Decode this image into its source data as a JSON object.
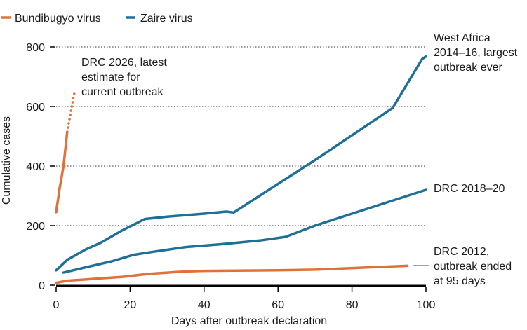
{
  "chart_data": {
    "type": "line",
    "title": "",
    "xlabel": "Days after outbreak declaration",
    "ylabel": "Cumulative cases",
    "xlim": [
      0,
      100
    ],
    "ylim": [
      0,
      800
    ],
    "x_ticks": [
      0,
      20,
      40,
      60,
      80,
      100
    ],
    "y_ticks": [
      0,
      200,
      400,
      600,
      800
    ],
    "grid": "horizontal dotted",
    "legend_position": "top-left",
    "legend": [
      {
        "label": "Bundibugyo virus",
        "color": "#e2703a"
      },
      {
        "label": "Zaire virus",
        "color": "#1f6f96"
      }
    ],
    "series": [
      {
        "name": "Bundibugyo virus",
        "color": "#e2703a",
        "points": [
          [
            0,
            245
          ],
          [
            1,
            330
          ],
          [
            2,
            400
          ],
          [
            3,
            515
          ]
        ]
      },
      {
        "name": "Bundibugyo virus",
        "color": "#e2703a",
        "dashed": true,
        "points": [
          [
            3,
            515
          ],
          [
            4,
            585
          ],
          [
            5,
            650
          ]
        ]
      },
      {
        "name": "Bundibugyo virus",
        "color": "#e2703a",
        "points": [
          [
            0,
            8
          ],
          [
            3,
            15
          ],
          [
            8,
            19
          ],
          [
            12,
            23
          ],
          [
            18,
            28
          ],
          [
            25,
            38
          ],
          [
            35,
            46
          ],
          [
            40,
            48
          ],
          [
            60,
            50
          ],
          [
            70,
            52
          ],
          [
            85,
            60
          ],
          [
            95,
            65
          ]
        ]
      },
      {
        "name": "Zaire virus",
        "color": "#1f6f96",
        "points": [
          [
            0,
            50
          ],
          [
            3,
            85
          ],
          [
            8,
            120
          ],
          [
            12,
            142
          ],
          [
            18,
            185
          ],
          [
            24,
            222
          ],
          [
            30,
            230
          ],
          [
            40,
            240
          ],
          [
            46,
            247
          ],
          [
            48,
            244
          ],
          [
            55,
            300
          ],
          [
            70,
            420
          ],
          [
            91,
            595
          ],
          [
            99,
            760
          ],
          [
            100,
            768
          ]
        ]
      },
      {
        "name": "Zaire virus",
        "color": "#1f6f96",
        "points": [
          [
            2,
            42
          ],
          [
            8,
            60
          ],
          [
            15,
            80
          ],
          [
            21,
            102
          ],
          [
            25,
            110
          ],
          [
            35,
            128
          ],
          [
            45,
            138
          ],
          [
            55,
            150
          ],
          [
            62,
            162
          ],
          [
            70,
            200
          ],
          [
            80,
            240
          ],
          [
            90,
            280
          ],
          [
            100,
            320
          ]
        ]
      }
    ],
    "annotations": [
      {
        "id": "drc2026",
        "lines": [
          "DRC 2026, latest",
          "estimate for",
          "current outbreak"
        ]
      },
      {
        "id": "westafrica",
        "lines": [
          "West Africa",
          "2014–16, largest",
          "outbreak ever"
        ]
      },
      {
        "id": "drc2018",
        "lines": [
          "DRC 2018–20"
        ]
      },
      {
        "id": "drc2012",
        "lines": [
          "DRC 2012,",
          "outbreak ended",
          "at 95 days"
        ]
      }
    ]
  }
}
